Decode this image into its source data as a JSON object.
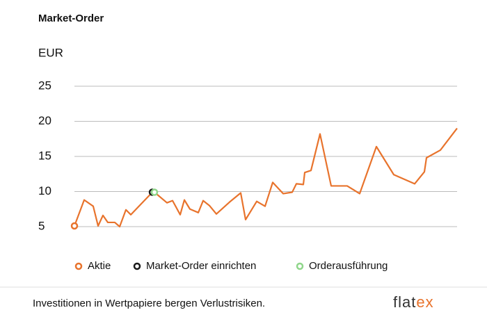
{
  "chart_data": {
    "type": "line",
    "title": "Market-Order",
    "y_label": "EUR",
    "series": [
      {
        "name": "Aktie",
        "color": "#e8732c",
        "x": [
          0,
          14,
          27,
          34,
          41,
          48,
          58,
          65,
          74,
          81,
          112,
          115,
          133,
          141,
          152,
          158,
          166,
          178,
          185,
          194,
          204,
          223,
          239,
          246,
          262,
          274,
          285,
          300,
          313,
          319,
          329,
          331,
          340,
          353,
          369,
          392,
          410,
          434,
          459,
          489,
          503,
          506,
          526,
          550
        ],
        "values": [
          5.1,
          8.8,
          7.9,
          5.1,
          6.6,
          5.6,
          5.6,
          5.0,
          7.4,
          6.7,
          9.9,
          9.9,
          8.4,
          8.7,
          6.7,
          8.8,
          7.5,
          7.0,
          8.7,
          8.0,
          6.8,
          8.5,
          9.8,
          6.0,
          8.6,
          7.9,
          11.3,
          9.7,
          9.9,
          11.1,
          11.0,
          12.7,
          13.0,
          18.2,
          10.8,
          10.8,
          9.7,
          16.4,
          12.4,
          11.1,
          12.8,
          14.8,
          15.9,
          19.0
        ]
      },
      {
        "name": "Market-Order einrichten",
        "color": "#1a1a1a",
        "x": [
          112
        ],
        "values": [
          9.9
        ]
      },
      {
        "name": "Orderausführung",
        "color": "#8fd68a",
        "x": [
          115
        ],
        "values": [
          9.9
        ]
      }
    ],
    "xlim": [
      0,
      550
    ],
    "ylim": [
      5,
      25
    ],
    "yticks": [
      5,
      10,
      15,
      20,
      25
    ],
    "grid": true
  },
  "footer": {
    "disclaimer": "Investitionen in Wertpapiere bergen Verlustrisiken.",
    "logo": [
      "flat",
      "ex"
    ]
  }
}
